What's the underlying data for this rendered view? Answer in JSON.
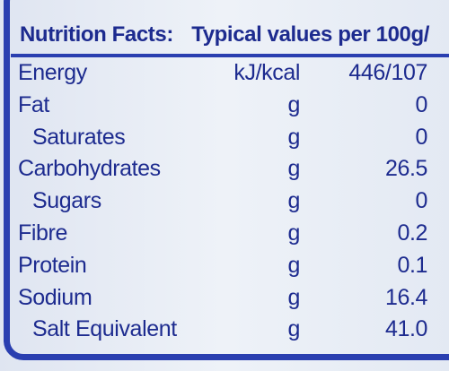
{
  "header": {
    "title": "Nutrition Facts:",
    "values_label": "Typical values per 100g/"
  },
  "table": {
    "rows": [
      {
        "name": "Energy",
        "unit": "kJ/kcal",
        "value": "446/107",
        "sub": false
      },
      {
        "name": "Fat",
        "unit": "g",
        "value": "0",
        "sub": false
      },
      {
        "name": "Saturates",
        "unit": "g",
        "value": "0",
        "sub": true
      },
      {
        "name": "Carbohydrates",
        "unit": "g",
        "value": "26.5",
        "sub": false
      },
      {
        "name": "Sugars",
        "unit": "g",
        "value": "0",
        "sub": true
      },
      {
        "name": "Fibre",
        "unit": "g",
        "value": "0.2",
        "sub": false
      },
      {
        "name": "Protein",
        "unit": "g",
        "value": "0.1",
        "sub": false
      },
      {
        "name": "Sodium",
        "unit": "g",
        "value": "16.4",
        "sub": false
      },
      {
        "name": "Salt Equivalent",
        "unit": "g",
        "value": "41.0",
        "sub": true
      }
    ]
  }
}
